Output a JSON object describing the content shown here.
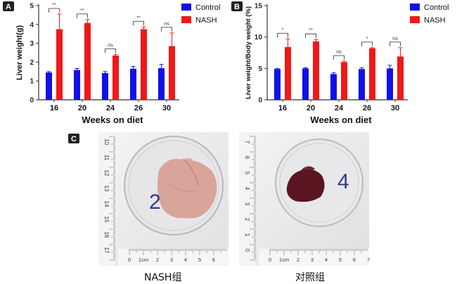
{
  "panels": {
    "a": "A",
    "b": "B",
    "c": "C"
  },
  "colors": {
    "control": "#1010e8",
    "nash": "#f01818",
    "axis": "#333333"
  },
  "chart_data": [
    {
      "type": "bar",
      "panel": "A",
      "categories": [
        "16",
        "20",
        "24",
        "26",
        "30"
      ],
      "series": [
        {
          "name": "Control",
          "values": [
            1.45,
            1.58,
            1.42,
            1.65,
            1.68
          ],
          "errors": [
            0.05,
            0.08,
            0.08,
            0.12,
            0.2
          ]
        },
        {
          "name": "NASH",
          "values": [
            3.75,
            4.08,
            2.35,
            3.75,
            2.85
          ],
          "errors": [
            0.8,
            0.18,
            0.06,
            0.12,
            0.7
          ]
        }
      ],
      "significance": [
        "**",
        "**",
        "ns",
        "**",
        "ns"
      ],
      "xlabel": "Weeks on diet",
      "ylabel": "Liver weight(g)",
      "ylim": [
        0,
        5
      ],
      "yticks": [
        0,
        1,
        2,
        3,
        4,
        5
      ],
      "legend": "top-right"
    },
    {
      "type": "bar",
      "panel": "B",
      "categories": [
        "16",
        "20",
        "24",
        "26",
        "30"
      ],
      "series": [
        {
          "name": "Control",
          "values": [
            4.9,
            5.0,
            4.1,
            4.9,
            5.0
          ],
          "errors": [
            0.1,
            0.1,
            0.2,
            0.2,
            0.5
          ]
        },
        {
          "name": "NASH",
          "values": [
            8.4,
            9.3,
            6.0,
            8.2,
            6.9
          ],
          "errors": [
            1.3,
            0.3,
            0.15,
            0.1,
            1.4
          ]
        }
      ],
      "significance": [
        "*",
        "**",
        "ns",
        "*",
        "ns"
      ],
      "xlabel": "Weeks on diet",
      "ylabel": "Liver weight/Body weight (%)",
      "ylim": [
        0,
        15
      ],
      "yticks": [
        0,
        5,
        10,
        15
      ],
      "legend": "top-right"
    }
  ],
  "photos": {
    "left": {
      "dish_number": "2",
      "caption": "NASH组",
      "ruler_vertical": [
        "10",
        "11",
        "12",
        "13",
        "14",
        "15",
        "16",
        "17"
      ],
      "ruler_horizontal": [
        "0",
        "1cm",
        "2",
        "3",
        "4",
        "5",
        "6"
      ],
      "liver_color": "#d9a59a"
    },
    "right": {
      "dish_number": "4",
      "caption": "对照组",
      "ruler_vertical": [
        "7",
        "6",
        "5",
        "4",
        "3",
        "2",
        "1",
        "0"
      ],
      "ruler_horizontal": [
        "0",
        "1cm",
        "2",
        "3",
        "4",
        "5",
        "6",
        "7"
      ],
      "liver_color": "#5a1620"
    }
  }
}
